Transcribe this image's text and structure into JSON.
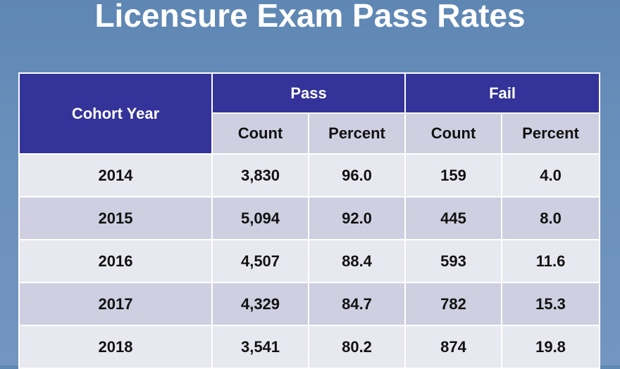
{
  "title": "Licensure Exam Pass Rates",
  "table": {
    "headers": {
      "cohort_year": "Cohort Year",
      "pass": "Pass",
      "fail": "Fail",
      "sub": [
        "Count",
        "Percent",
        "Count",
        "Percent"
      ]
    },
    "rows": [
      [
        "2014",
        "3,830",
        "96.0",
        "159",
        "4.0"
      ],
      [
        "2015",
        "5,094",
        "92.0",
        "445",
        "8.0"
      ],
      [
        "2016",
        "4,507",
        "88.4",
        "593",
        "11.6"
      ],
      [
        "2017",
        "4,329",
        "84.7",
        "782",
        "15.3"
      ],
      [
        "2018",
        "3,541",
        "80.2",
        "874",
        "19.8"
      ]
    ]
  },
  "colors": {
    "background": "#6a8fbb",
    "header_fill": "#333399",
    "subheader_fill": "#cfcfe1",
    "row_light": "#e8e8f0",
    "row_dark": "#cfcfe1"
  }
}
